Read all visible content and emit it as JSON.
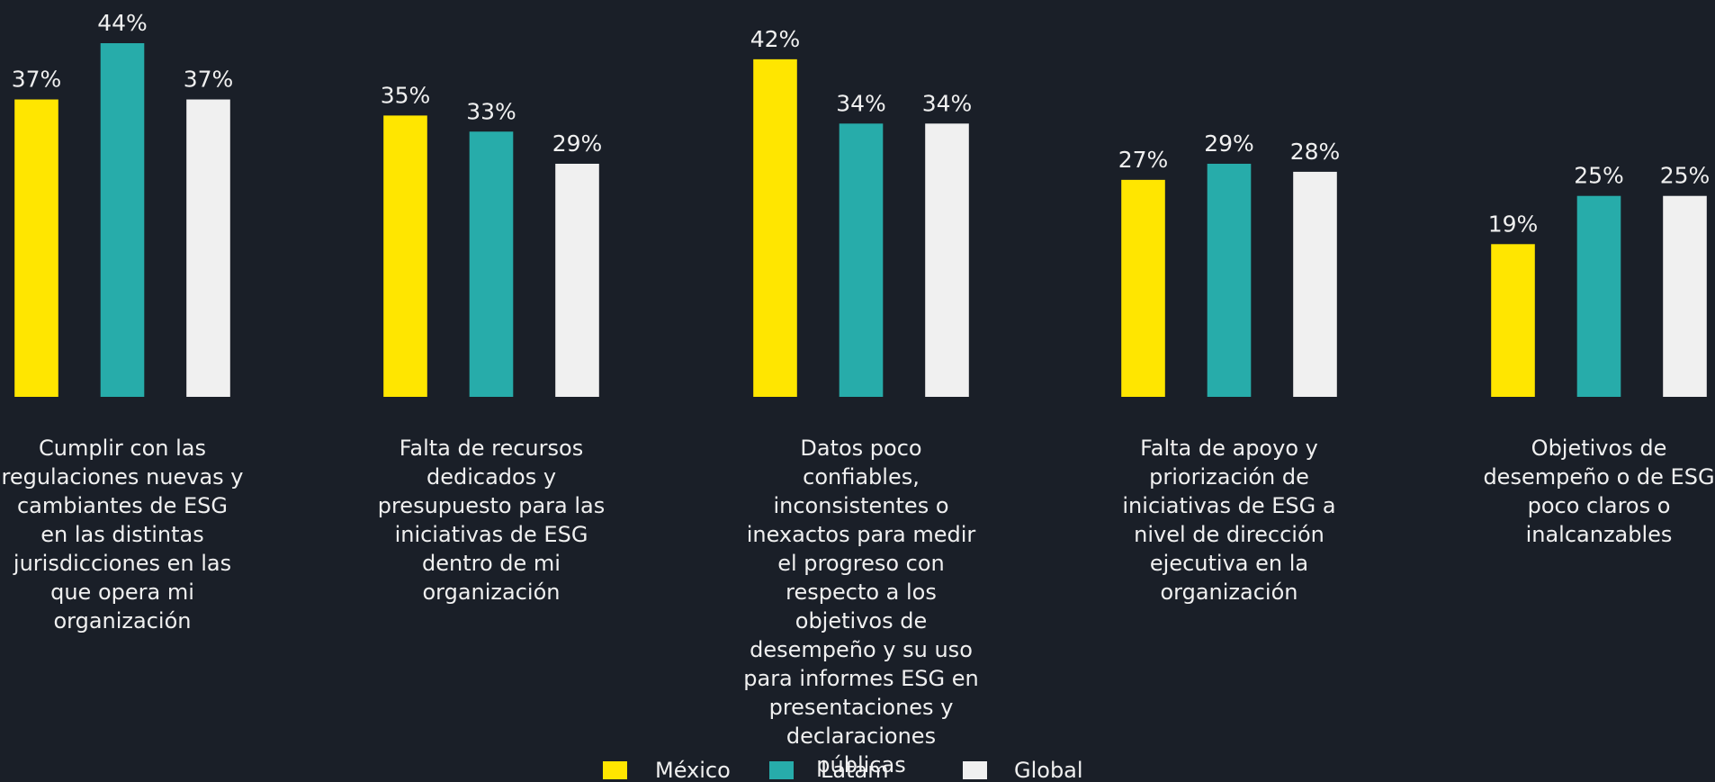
{
  "chart_data": {
    "type": "bar",
    "categories": [
      "Cumplir con las regulaciones nuevas y cambiantes de ESG en las distintas jurisdicciones en las que opera mi organización",
      "Falta de recursos dedicados y presupuesto para las iniciativas de ESG dentro de mi organización",
      "Datos poco confiables, inconsistentes o inexactos para medir el progreso con respecto a los objetivos de desempeño y su uso para informes ESG en presentaciones y declaraciones públicas",
      "Falta de apoyo y priorización de iniciativas de ESG a nivel de dirección ejecutiva en la organización",
      "Objetivos de desempeño o de ESG poco claros o inalcanzables"
    ],
    "series": [
      {
        "name": "México",
        "color": "#ffe600",
        "values": [
          37,
          35,
          42,
          27,
          19
        ],
        "value_labels": [
          "37%",
          "35%",
          "42%",
          "27%",
          "19%"
        ]
      },
      {
        "name": "Latam",
        "color": "#27acaa",
        "values": [
          44,
          33,
          34,
          29,
          25
        ],
        "value_labels": [
          "44%",
          "33%",
          "34%",
          "29%",
          "25%"
        ]
      },
      {
        "name": "Global",
        "color": "#f0f0f0",
        "values": [
          37,
          29,
          34,
          28,
          25
        ],
        "value_labels": [
          "37%",
          "29%",
          "34%",
          "28%",
          "25%"
        ]
      }
    ]
  }
}
